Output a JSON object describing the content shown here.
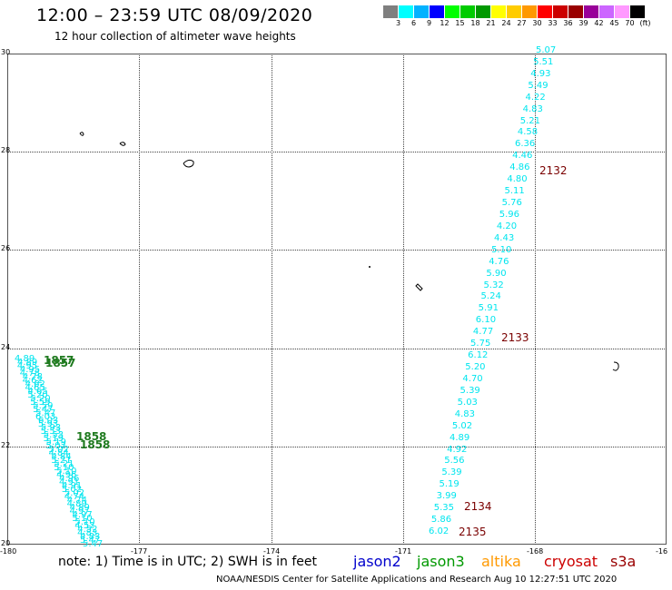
{
  "header": {
    "title": "12:00 – 23:59 UTC 08/09/2020",
    "subtitle": "12 hour collection of altimeter wave heights"
  },
  "color_scale": {
    "colors": [
      "#7f7f7f",
      "#00ffff",
      "#00b2ff",
      "#0000ff",
      "#00ff00",
      "#00cc00",
      "#009900",
      "#ffff00",
      "#ffcc00",
      "#ff9900",
      "#ff0000",
      "#cc0000",
      "#990000",
      "#990099",
      "#cc66ff",
      "#ff99ff",
      "#000000"
    ],
    "labels": [
      "3",
      "6",
      "9",
      "12",
      "15",
      "18",
      "21",
      "24",
      "27",
      "30",
      "33",
      "36",
      "39",
      "42",
      "45",
      "70",
      "(ft)"
    ]
  },
  "axes": {
    "y_ticks": [
      "30",
      "28",
      "26",
      "24",
      "22",
      "20"
    ],
    "x_ticks": [
      "-180",
      "-177",
      "-174",
      "-171",
      "-168",
      "-16"
    ]
  },
  "tracks": {
    "east_values": [
      "5.07",
      "5.51",
      "4.93",
      "5.49",
      "4.22",
      "4.83",
      "5.21",
      "4.58",
      "6.36",
      "4.46",
      "4.86",
      "4.80",
      "5.11",
      "5.76",
      "5.96",
      "4.20",
      "4.43",
      "5.10",
      "4.76",
      "5.90",
      "5.32",
      "5.24",
      "5.91",
      "6.10",
      "4.77",
      "5.75",
      "6.12",
      "5.20",
      "4.70",
      "5.39",
      "5.03",
      "4.83",
      "5.02",
      "4.89",
      "4.92",
      "5.56",
      "5.39",
      "5.19",
      "3.99",
      "5.35",
      "5.86",
      "6.02"
    ],
    "west_values": [
      "4.89",
      "4.95",
      "4.78",
      "4.62",
      "4.65",
      "5.20",
      "5.59",
      "5.47",
      "6.03",
      "5.93",
      "5.53",
      "5.19",
      "5.02",
      "4.84",
      "5.21",
      "5.10",
      "4.96",
      "4.91",
      "5.02",
      "4.74",
      "4.89",
      "4.97",
      "5.10",
      "4.52",
      "4.83",
      "5.47"
    ],
    "east_times": [
      "2132",
      "2133",
      "2134",
      "2135"
    ],
    "west_times": [
      "1857",
      "1857",
      "1858",
      "1858"
    ]
  },
  "footer": {
    "note": "note: 1) Time is in UTC; 2) SWH is in feet",
    "satellites": [
      {
        "name": "jason2",
        "color": "#0000cc"
      },
      {
        "name": "jason3",
        "color": "#009900"
      },
      {
        "name": "altika",
        "color": "#ff9900"
      },
      {
        "name": "cryosat",
        "color": "#cc0000"
      },
      {
        "name": "s3a",
        "color": "#990000"
      }
    ],
    "credit": "NOAA/NESDIS Center for Satellite Applications and Research   Aug 10 12:27:51 UTC 2020"
  }
}
